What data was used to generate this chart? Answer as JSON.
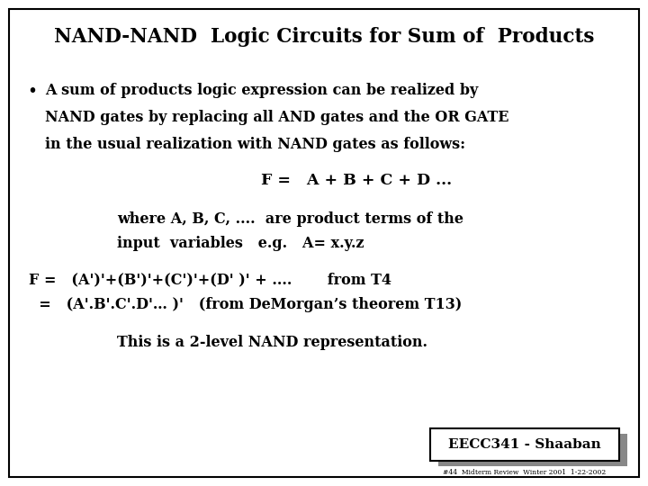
{
  "title": "NAND-NAND  Logic Circuits for Sum of  Products",
  "bg_color": "#ffffff",
  "border_color": "#000000",
  "text_color": "#000000",
  "title_fontsize": 15.5,
  "body_fontsize": 11.5,
  "footer_label": "EECC341 - Shaaban",
  "footer_sub": "#44  Midterm Review  Winter 2001  1-22-2002",
  "bullet_line1": "A sum of products logic expression can be realized by",
  "bullet_line2": "NAND gates by replacing all AND gates and the OR GATE",
  "bullet_line3": "in the usual realization with NAND gates as follows:",
  "formula1": "F =   A + B + C + D ...",
  "where_line1": "where A, B, C, ....  are product terms of the",
  "where_line2": "input  variables   e.g.   A= x.y.z",
  "f_line1": "F =   (A')'+(B')'+(C')'+(D' )' + ....       from T4",
  "f_line2": "  =   (A'.B'.C'.D'… )'   (from DeMorgan’s theorem T13)",
  "conclusion": "This is a 2-level NAND representation."
}
